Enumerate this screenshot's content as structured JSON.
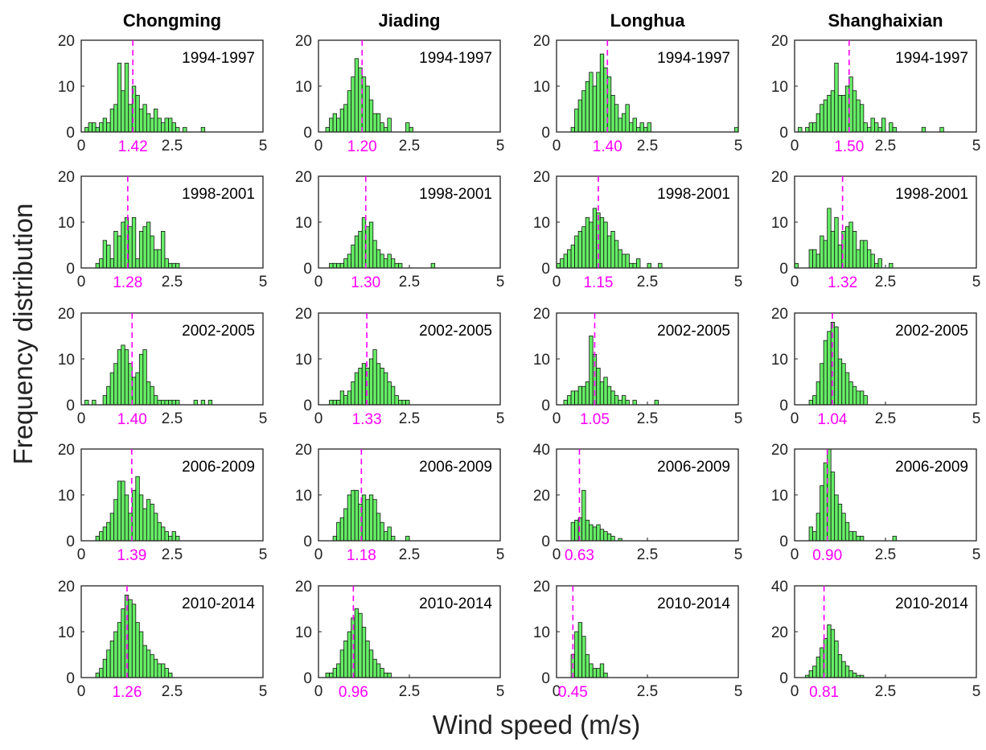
{
  "figure": {
    "xlabel": "Wind speed (m/s)",
    "ylabel": "Frequency distribution"
  },
  "chart_data": {
    "type": "bar",
    "layout": "5 rows x 4 columns of histograms",
    "columns": [
      "Chongming",
      "Jiading",
      "Longhua",
      "Shanghaixian"
    ],
    "periods": [
      "1994-1997",
      "1998-2001",
      "2002-2005",
      "2006-2009",
      "2010-2014"
    ],
    "xlim": [
      0,
      5
    ],
    "xticks": [
      0,
      2.5,
      5
    ],
    "bin_width": 0.1,
    "bin_start": 0,
    "panels": [
      {
        "station": "Chongming",
        "period": "1994-1997",
        "mean": 1.42,
        "mean_label": "1.42",
        "ylim": [
          0,
          20
        ],
        "yticks": [
          0,
          10,
          20
        ],
        "counts": [
          0,
          1,
          2,
          2,
          1,
          2,
          3,
          2,
          5,
          6,
          15,
          9,
          15,
          6,
          10,
          8,
          5,
          6,
          4,
          3,
          5,
          3,
          2,
          3,
          3,
          2,
          1,
          0,
          1,
          0,
          0,
          0,
          0,
          1,
          0,
          0,
          0,
          0,
          0,
          0,
          0,
          0,
          0,
          0,
          0,
          0,
          0,
          0,
          0,
          0
        ]
      },
      {
        "station": "Jiading",
        "period": "1994-1997",
        "mean": 1.2,
        "mean_label": "1.20",
        "ylim": [
          0,
          20
        ],
        "yticks": [
          0,
          10,
          20
        ],
        "counts": [
          0,
          0,
          1,
          3,
          4,
          3,
          5,
          6,
          9,
          12,
          16,
          14,
          12,
          10,
          7,
          4,
          4,
          2,
          1,
          3,
          0,
          0,
          0,
          0,
          2,
          1,
          0,
          0,
          0,
          0,
          0,
          0,
          0,
          0,
          0,
          0,
          0,
          0,
          0,
          0,
          0,
          0,
          0,
          0,
          0,
          0,
          0,
          0,
          0,
          0
        ]
      },
      {
        "station": "Longhua",
        "period": "1994-1997",
        "mean": 1.4,
        "mean_label": "1.40",
        "ylim": [
          0,
          20
        ],
        "yticks": [
          0,
          10,
          20
        ],
        "counts": [
          0,
          0,
          0,
          0,
          1,
          5,
          7,
          9,
          11,
          13,
          10,
          13,
          17,
          14,
          12,
          8,
          6,
          3,
          4,
          6,
          2,
          3,
          1,
          2,
          1,
          2,
          0,
          0,
          0,
          0,
          0,
          0,
          0,
          0,
          0,
          0,
          0,
          0,
          0,
          0,
          0,
          0,
          0,
          0,
          0,
          0,
          0,
          0,
          0,
          1
        ]
      },
      {
        "station": "Shanghaixian",
        "period": "1994-1997",
        "mean": 1.5,
        "mean_label": "1.50",
        "ylim": [
          0,
          20
        ],
        "yticks": [
          0,
          10,
          20
        ],
        "counts": [
          0,
          1,
          0,
          1,
          2,
          2,
          4,
          6,
          7,
          8,
          9,
          15,
          8,
          8,
          10,
          12,
          9,
          7,
          6,
          2,
          1,
          3,
          2,
          1,
          3,
          0,
          2,
          1,
          0,
          0,
          0,
          0,
          0,
          0,
          0,
          1,
          0,
          0,
          0,
          0,
          1,
          0,
          0,
          0,
          0,
          0,
          0,
          0,
          0,
          0
        ]
      },
      {
        "station": "Chongming",
        "period": "1998-2001",
        "mean": 1.28,
        "mean_label": "1.28",
        "ylim": [
          0,
          20
        ],
        "yticks": [
          0,
          10,
          20
        ],
        "counts": [
          0,
          0,
          0,
          0,
          1,
          2,
          6,
          5,
          2,
          8,
          7,
          10,
          11,
          9,
          11,
          2,
          8,
          9,
          10,
          7,
          4,
          4,
          8,
          2,
          1,
          1,
          1,
          0,
          0,
          0,
          0,
          0,
          0,
          0,
          0,
          0,
          0,
          0,
          0,
          0,
          0,
          0,
          0,
          0,
          0,
          0,
          0,
          0,
          0,
          0
        ]
      },
      {
        "station": "Jiading",
        "period": "1998-2001",
        "mean": 1.3,
        "mean_label": "1.30",
        "ylim": [
          0,
          20
        ],
        "yticks": [
          0,
          10,
          20
        ],
        "counts": [
          0,
          0,
          0,
          1,
          1,
          1,
          1,
          2,
          3,
          5,
          7,
          8,
          11,
          9,
          10,
          6,
          4,
          3,
          2,
          3,
          2,
          1,
          1,
          0,
          0,
          0,
          0,
          0,
          0,
          0,
          0,
          1,
          0,
          0,
          0,
          0,
          0,
          0,
          0,
          0,
          0,
          0,
          0,
          0,
          0,
          0,
          0,
          0,
          0,
          0
        ]
      },
      {
        "station": "Longhua",
        "period": "1998-2001",
        "mean": 1.15,
        "mean_label": "1.15",
        "ylim": [
          0,
          20
        ],
        "yticks": [
          0,
          10,
          20
        ],
        "counts": [
          1,
          2,
          3,
          4,
          5,
          7,
          8,
          9,
          11,
          10,
          13,
          12,
          11,
          10,
          7,
          8,
          6,
          4,
          3,
          3,
          1,
          1,
          2,
          0,
          0,
          1,
          0,
          0,
          1,
          0,
          0,
          0,
          0,
          0,
          0,
          0,
          0,
          0,
          0,
          0,
          0,
          0,
          0,
          0,
          0,
          0,
          0,
          0,
          0,
          0
        ]
      },
      {
        "station": "Shanghaixian",
        "period": "1998-2001",
        "mean": 1.32,
        "mean_label": "1.32",
        "ylim": [
          0,
          20
        ],
        "yticks": [
          0,
          10,
          20
        ],
        "counts": [
          1,
          0,
          0,
          0,
          4,
          4,
          3,
          7,
          6,
          13,
          8,
          11,
          5,
          8,
          9,
          10,
          8,
          4,
          6,
          6,
          4,
          3,
          1,
          2,
          0,
          0,
          1,
          0,
          0,
          0,
          0,
          0,
          0,
          0,
          0,
          0,
          0,
          0,
          0,
          0,
          0,
          0,
          0,
          0,
          0,
          0,
          0,
          0,
          0,
          0
        ]
      },
      {
        "station": "Chongming",
        "period": "2002-2005",
        "mean": 1.4,
        "mean_label": "1.40",
        "ylim": [
          0,
          20
        ],
        "yticks": [
          0,
          10,
          20
        ],
        "counts": [
          0,
          1,
          0,
          1,
          0,
          0,
          2,
          4,
          7,
          9,
          12,
          13,
          12,
          9,
          6,
          7,
          11,
          12,
          5,
          4,
          2,
          1,
          1,
          1,
          1,
          1,
          1,
          0,
          0,
          0,
          0,
          1,
          0,
          1,
          0,
          1,
          0,
          0,
          0,
          0,
          0,
          0,
          0,
          0,
          0,
          0,
          0,
          0,
          0,
          0
        ]
      },
      {
        "station": "Jiading",
        "period": "2002-2005",
        "mean": 1.33,
        "mean_label": "1.33",
        "ylim": [
          0,
          20
        ],
        "yticks": [
          0,
          10,
          20
        ],
        "counts": [
          0,
          0,
          0,
          1,
          1,
          1,
          3,
          2,
          3,
          5,
          7,
          8,
          9,
          8,
          10,
          12,
          9,
          8,
          7,
          5,
          4,
          2,
          1,
          1,
          1,
          0,
          0,
          0,
          0,
          0,
          0,
          0,
          0,
          0,
          0,
          0,
          0,
          0,
          0,
          0,
          0,
          0,
          0,
          0,
          0,
          0,
          0,
          0,
          0,
          0
        ]
      },
      {
        "station": "Longhua",
        "period": "2002-2005",
        "mean": 1.05,
        "mean_label": "1.05",
        "ylim": [
          0,
          20
        ],
        "yticks": [
          0,
          10,
          20
        ],
        "counts": [
          0,
          0,
          1,
          2,
          3,
          3,
          4,
          4,
          5,
          15,
          11,
          8,
          5,
          6,
          4,
          3,
          2,
          1,
          2,
          1,
          0,
          1,
          0,
          0,
          0,
          0,
          0,
          1,
          0,
          0,
          0,
          0,
          0,
          0,
          0,
          0,
          0,
          0,
          0,
          0,
          0,
          0,
          0,
          0,
          0,
          0,
          0,
          0,
          0,
          0
        ]
      },
      {
        "station": "Shanghaixian",
        "period": "2002-2005",
        "mean": 1.04,
        "mean_label": "1.04",
        "ylim": [
          0,
          20
        ],
        "yticks": [
          0,
          10,
          20
        ],
        "counts": [
          0,
          0,
          0,
          0,
          1,
          2,
          5,
          9,
          14,
          16,
          18,
          17,
          10,
          9,
          7,
          5,
          4,
          3,
          3,
          2,
          0,
          0,
          0,
          0,
          0,
          0,
          0,
          0,
          0,
          0,
          0,
          0,
          0,
          0,
          0,
          0,
          0,
          0,
          0,
          0,
          0,
          0,
          0,
          0,
          0,
          0,
          0,
          0,
          0,
          0
        ]
      },
      {
        "station": "Chongming",
        "period": "2006-2009",
        "mean": 1.39,
        "mean_label": "1.39",
        "ylim": [
          0,
          20
        ],
        "yticks": [
          0,
          10,
          20
        ],
        "counts": [
          0,
          0,
          0,
          0,
          1,
          2,
          3,
          4,
          6,
          9,
          13,
          13,
          10,
          6,
          11,
          14,
          10,
          7,
          9,
          8,
          6,
          4,
          3,
          2,
          1,
          2,
          1,
          0,
          0,
          0,
          0,
          0,
          0,
          0,
          0,
          0,
          0,
          0,
          0,
          0,
          0,
          0,
          0,
          0,
          0,
          0,
          0,
          0,
          0,
          0
        ]
      },
      {
        "station": "Jiading",
        "period": "2006-2009",
        "mean": 1.18,
        "mean_label": "1.18",
        "ylim": [
          0,
          20
        ],
        "yticks": [
          0,
          10,
          20
        ],
        "counts": [
          0,
          0,
          0,
          0,
          1,
          4,
          5,
          7,
          10,
          11,
          11,
          8,
          10,
          9,
          10,
          9,
          6,
          4,
          2,
          3,
          1,
          0,
          0,
          0,
          1,
          0,
          0,
          0,
          0,
          0,
          0,
          0,
          0,
          0,
          0,
          0,
          0,
          0,
          0,
          0,
          0,
          0,
          0,
          0,
          0,
          0,
          0,
          0,
          0,
          0
        ]
      },
      {
        "station": "Longhua",
        "period": "2006-2009",
        "mean": 0.63,
        "mean_label": "0.63",
        "ylim": [
          0,
          40
        ],
        "yticks": [
          0,
          20,
          40
        ],
        "counts": [
          0,
          0,
          0,
          0,
          8,
          9,
          10,
          22,
          9,
          7,
          6,
          7,
          5,
          4,
          3,
          2,
          0,
          1,
          0,
          0,
          0,
          0,
          0,
          0,
          0,
          0,
          0,
          0,
          0,
          0,
          0,
          0,
          0,
          0,
          0,
          0,
          0,
          0,
          0,
          0,
          0,
          0,
          0,
          0,
          0,
          0,
          0,
          0,
          0,
          0
        ]
      },
      {
        "station": "Shanghaixian",
        "period": "2006-2009",
        "mean": 0.9,
        "mean_label": "0.90",
        "ylim": [
          0,
          20
        ],
        "yticks": [
          0,
          10,
          20
        ],
        "counts": [
          0,
          0,
          0,
          0,
          3,
          2,
          6,
          12,
          17,
          20,
          15,
          10,
          8,
          6,
          4,
          2,
          2,
          1,
          1,
          0,
          0,
          0,
          0,
          0,
          0,
          0,
          0,
          1,
          0,
          0,
          0,
          0,
          0,
          0,
          0,
          0,
          0,
          0,
          0,
          0,
          0,
          0,
          0,
          0,
          0,
          0,
          0,
          0,
          0,
          0
        ]
      },
      {
        "station": "Chongming",
        "period": "2010-2014",
        "mean": 1.26,
        "mean_label": "1.26",
        "ylim": [
          0,
          20
        ],
        "yticks": [
          0,
          10,
          20
        ],
        "counts": [
          0,
          0,
          0,
          0,
          1,
          2,
          4,
          6,
          8,
          10,
          12,
          15,
          18,
          17,
          16,
          12,
          10,
          7,
          6,
          5,
          4,
          3,
          3,
          2,
          1,
          0,
          0,
          0,
          0,
          0,
          0,
          0,
          0,
          0,
          0,
          0,
          0,
          0,
          0,
          0,
          0,
          0,
          0,
          0,
          0,
          0,
          0,
          0,
          0,
          0
        ]
      },
      {
        "station": "Jiading",
        "period": "2010-2014",
        "mean": 0.96,
        "mean_label": "0.96",
        "ylim": [
          0,
          20
        ],
        "yticks": [
          0,
          10,
          20
        ],
        "counts": [
          0,
          0,
          1,
          1,
          2,
          3,
          6,
          8,
          10,
          13,
          15,
          14,
          11,
          8,
          6,
          4,
          3,
          2,
          1,
          1,
          0,
          0,
          0,
          0,
          0,
          0,
          0,
          0,
          0,
          0,
          0,
          0,
          0,
          0,
          0,
          0,
          0,
          0,
          0,
          0,
          0,
          0,
          0,
          0,
          0,
          0,
          0,
          0,
          0,
          0
        ]
      },
      {
        "station": "Longhua",
        "period": "2010-2014",
        "mean": 0.45,
        "mean_label": "0.45",
        "ylim": [
          0,
          20
        ],
        "yticks": [
          0,
          10,
          20
        ],
        "counts": [
          0,
          0,
          0,
          0,
          5,
          10,
          12,
          9,
          5,
          3,
          2,
          2,
          3,
          1,
          0,
          0,
          0,
          0,
          0,
          0,
          0,
          0,
          0,
          0,
          0,
          0,
          0,
          0,
          0,
          0,
          0,
          0,
          0,
          0,
          0,
          0,
          0,
          0,
          0,
          0,
          0,
          0,
          0,
          0,
          0,
          0,
          0,
          0,
          0,
          0
        ]
      },
      {
        "station": "Shanghaixian",
        "period": "2010-2014",
        "mean": 0.81,
        "mean_label": "0.81",
        "ylim": [
          0,
          40
        ],
        "yticks": [
          0,
          20,
          40
        ],
        "counts": [
          0,
          0,
          0,
          1,
          3,
          5,
          9,
          13,
          17,
          23,
          21,
          16,
          10,
          7,
          5,
          3,
          2,
          1,
          1,
          0,
          0,
          0,
          0,
          0,
          0,
          0,
          0,
          0,
          0,
          0,
          0,
          0,
          0,
          0,
          0,
          0,
          0,
          0,
          0,
          0,
          0,
          0,
          0,
          0,
          0,
          0,
          0,
          0,
          0,
          0
        ]
      }
    ]
  }
}
